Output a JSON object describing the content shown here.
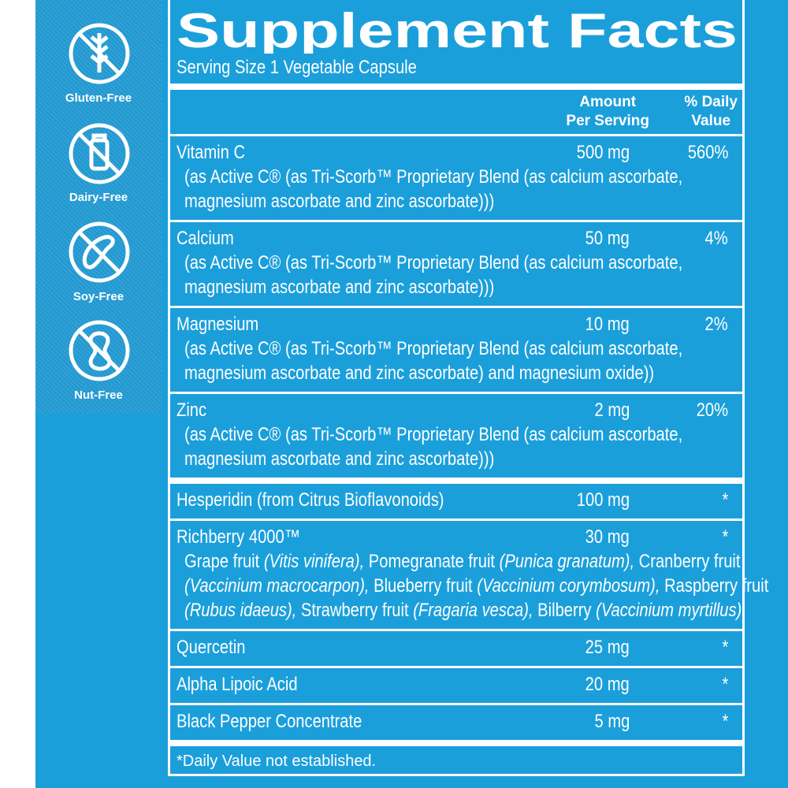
{
  "badges": [
    {
      "label": "Gluten-Free"
    },
    {
      "label": "Dairy-Free"
    },
    {
      "label": "Soy-Free"
    },
    {
      "label": "Nut-Free"
    }
  ],
  "title": "Supplement Facts",
  "serving_size": "Serving Size 1 Vegetable Capsule",
  "header": {
    "amount": [
      "Amount",
      "Per Serving"
    ],
    "daily_value": [
      "% Daily",
      "Value"
    ]
  },
  "sections": [
    {
      "rows": [
        {
          "name": "Vitamin C",
          "amount": "500 mg",
          "daily_value": "560%",
          "description": [
            "(as Active C® (as Tri-Scorb™ Proprietary Blend (as calcium ascorbate,",
            "magnesium ascorbate and zinc ascorbate)))"
          ]
        },
        {
          "name": "Calcium",
          "amount": "50 mg",
          "daily_value": "4%",
          "description": [
            "(as Active C® (as Tri-Scorb™ Proprietary Blend (as calcium ascorbate,",
            "magnesium ascorbate and zinc ascorbate)))"
          ]
        },
        {
          "name": "Magnesium",
          "amount": "10 mg",
          "daily_value": "2%",
          "description": [
            "(as Active C® (as Tri-Scorb™ Proprietary Blend (as calcium ascorbate,",
            "magnesium ascorbate and zinc ascorbate) and magnesium oxide))"
          ]
        },
        {
          "name": "Zinc",
          "amount": "2 mg",
          "daily_value": "20%",
          "description": [
            "(as Active C® (as Tri-Scorb™ Proprietary Blend (as calcium ascorbate,",
            "magnesium ascorbate and zinc ascorbate)))"
          ]
        }
      ]
    },
    {
      "rows": [
        {
          "name": "Hesperidin (from Citrus Bioflavonoids)",
          "amount": "100 mg",
          "daily_value": "*"
        },
        {
          "name": "Richberry 4000™",
          "amount": "30 mg",
          "daily_value": "*",
          "description": [
            [
              {
                "text": "Grape fruit "
              },
              {
                "text": "(Vitis vinifera),",
                "italic": true
              },
              {
                "text": " Pomegranate fruit "
              },
              {
                "text": "(Punica granatum),",
                "italic": true
              },
              {
                "text": " Cranberry fruit"
              }
            ],
            [
              {
                "text": "(Vaccinium macrocarpon),",
                "italic": true
              },
              {
                "text": " Blueberry fruit "
              },
              {
                "text": "(Vaccinium corymbosum),",
                "italic": true
              },
              {
                "text": " Raspberry fruit"
              }
            ],
            [
              {
                "text": "(Rubus idaeus),",
                "italic": true
              },
              {
                "text": " Strawberry fruit "
              },
              {
                "text": "(Fragaria vesca),",
                "italic": true
              },
              {
                "text": " Bilberry "
              },
              {
                "text": "(Vaccinium myrtillus)",
                "italic": true
              }
            ]
          ]
        },
        {
          "name": "Quercetin",
          "amount": "25 mg",
          "daily_value": "*"
        },
        {
          "name": "Alpha Lipoic Acid",
          "amount": "20 mg",
          "daily_value": "*"
        },
        {
          "name": "Black Pepper Concentrate",
          "amount": "5 mg",
          "daily_value": "*"
        }
      ]
    }
  ],
  "footnote": "*Daily Value not established."
}
